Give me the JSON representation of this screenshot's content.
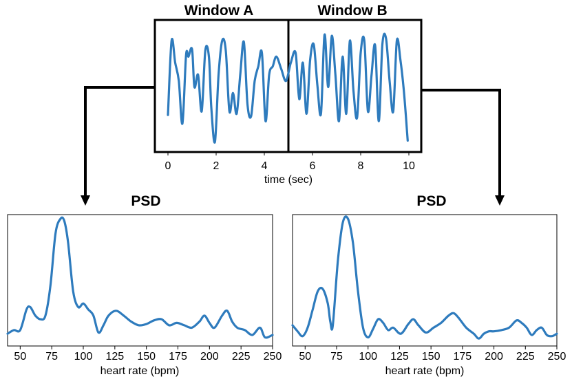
{
  "time_panel": {
    "window_a_label": "Window A",
    "window_b_label": "Window B",
    "xlabel": "time (sec)",
    "xticks": [
      "0",
      "2",
      "4",
      "6",
      "8",
      "10"
    ]
  },
  "left_psd": {
    "title": "PSD",
    "xlabel": "heart rate (bpm)",
    "xticks": [
      "50",
      "75",
      "100",
      "125",
      "150",
      "175",
      "200",
      "225",
      "250"
    ]
  },
  "right_psd": {
    "title": "PSD",
    "xlabel": "heart rate (bpm)",
    "xticks": [
      "50",
      "75",
      "100",
      "125",
      "150",
      "175",
      "200",
      "225",
      "250"
    ]
  },
  "colors": {
    "signal": "#2e7bbd",
    "frame": "#000000"
  },
  "chart_data": [
    {
      "type": "line",
      "name": "time-signal",
      "xlabel": "time (sec)",
      "xlim": [
        -0.1,
        10.1
      ],
      "ylim": [
        0,
        1
      ],
      "x": [
        0,
        0.15,
        0.3,
        0.45,
        0.6,
        0.75,
        0.85,
        1.0,
        1.1,
        1.25,
        1.4,
        1.55,
        1.7,
        1.8,
        1.95,
        2.1,
        2.25,
        2.4,
        2.55,
        2.7,
        2.85,
        3.0,
        3.15,
        3.3,
        3.45,
        3.6,
        3.75,
        3.9,
        4.05,
        4.2,
        4.35,
        4.5,
        4.7,
        4.9,
        5.1,
        5.3,
        5.45,
        5.6,
        5.75,
        5.9,
        6.05,
        6.2,
        6.35,
        6.5,
        6.65,
        6.8,
        6.95,
        7.1,
        7.25,
        7.4,
        7.55,
        7.7,
        7.85,
        8.0,
        8.15,
        8.3,
        8.45,
        8.6,
        8.75,
        8.9,
        9.05,
        9.2,
        9.35,
        9.5,
        9.65,
        9.8,
        9.95
      ],
      "values": [
        0.27,
        0.88,
        0.7,
        0.55,
        0.2,
        0.76,
        0.75,
        0.81,
        0.5,
        0.6,
        0.3,
        0.8,
        0.75,
        0.33,
        0.05,
        0.6,
        0.88,
        0.8,
        0.3,
        0.45,
        0.28,
        0.6,
        0.87,
        0.36,
        0.26,
        0.55,
        0.67,
        0.78,
        0.22,
        0.6,
        0.67,
        0.75,
        0.65,
        0.55,
        0.7,
        0.78,
        0.4,
        0.7,
        0.28,
        0.72,
        0.85,
        0.52,
        0.28,
        0.93,
        0.5,
        0.92,
        0.6,
        0.22,
        0.75,
        0.28,
        0.88,
        0.47,
        0.25,
        0.78,
        0.88,
        0.3,
        0.6,
        0.84,
        0.22,
        0.85,
        0.9,
        0.55,
        0.3,
        0.88,
        0.72,
        0.45,
        0.06
      ]
    },
    {
      "type": "line",
      "name": "psd-window-a",
      "xlabel": "heart rate (bpm)",
      "xlim": [
        40,
        250
      ],
      "ylim": [
        0,
        1
      ],
      "x": [
        40,
        45,
        50,
        55,
        58,
        62,
        66,
        70,
        74,
        78,
        82,
        85,
        88,
        92,
        96,
        100,
        104,
        108,
        112,
        116,
        120,
        126,
        132,
        138,
        144,
        150,
        156,
        162,
        168,
        174,
        180,
        186,
        192,
        196,
        200,
        204,
        210,
        214,
        218,
        222,
        228,
        234,
        240,
        244,
        250
      ],
      "values": [
        0.05,
        0.08,
        0.08,
        0.25,
        0.27,
        0.2,
        0.17,
        0.2,
        0.45,
        0.88,
        1.0,
        0.98,
        0.8,
        0.4,
        0.27,
        0.3,
        0.25,
        0.2,
        0.06,
        0.12,
        0.2,
        0.24,
        0.2,
        0.15,
        0.12,
        0.13,
        0.16,
        0.17,
        0.12,
        0.14,
        0.12,
        0.1,
        0.15,
        0.2,
        0.14,
        0.1,
        0.2,
        0.24,
        0.15,
        0.1,
        0.08,
        0.04,
        0.1,
        0.02,
        0.04
      ]
    },
    {
      "type": "line",
      "name": "psd-window-b",
      "xlabel": "heart rate (bpm)",
      "xlim": [
        40,
        250
      ],
      "ylim": [
        0,
        1
      ],
      "x": [
        40,
        44,
        48,
        52,
        56,
        60,
        64,
        68,
        70,
        72,
        76,
        80,
        84,
        88,
        92,
        96,
        100,
        104,
        108,
        112,
        116,
        120,
        126,
        132,
        136,
        140,
        146,
        152,
        158,
        164,
        168,
        172,
        178,
        184,
        188,
        192,
        196,
        200,
        206,
        212,
        218,
        222,
        226,
        230,
        234,
        238,
        242,
        246,
        250
      ],
      "values": [
        0.12,
        0.07,
        0.03,
        0.1,
        0.25,
        0.4,
        0.42,
        0.3,
        0.15,
        0.12,
        0.65,
        0.97,
        1.0,
        0.8,
        0.4,
        0.1,
        0.02,
        0.09,
        0.17,
        0.14,
        0.08,
        0.1,
        0.05,
        0.13,
        0.17,
        0.12,
        0.06,
        0.1,
        0.14,
        0.2,
        0.22,
        0.18,
        0.1,
        0.05,
        0.01,
        0.05,
        0.07,
        0.07,
        0.08,
        0.1,
        0.16,
        0.14,
        0.1,
        0.04,
        0.08,
        0.1,
        0.04,
        0.03,
        0.05
      ]
    }
  ]
}
